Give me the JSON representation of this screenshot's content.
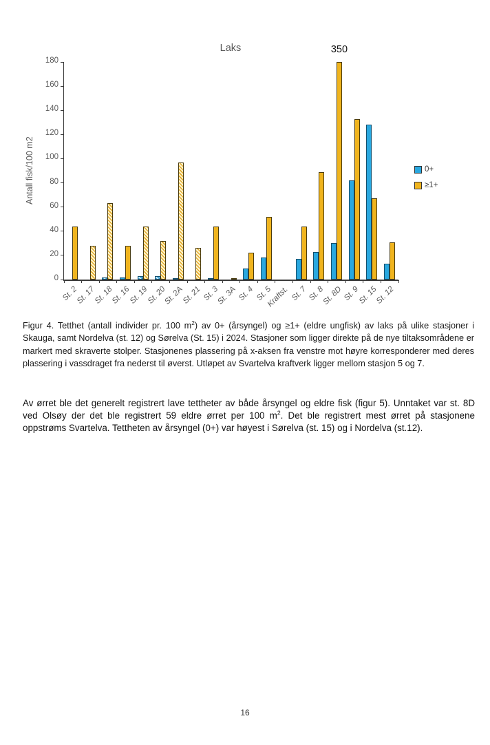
{
  "page": {
    "number": "16"
  },
  "chart_data": {
    "type": "bar",
    "title": "Laks",
    "ylabel": "Antall fisk/100 m2",
    "ylim": [
      0,
      180
    ],
    "ytick_step": 20,
    "grid": false,
    "legend_position": "right",
    "axis_text_color": "#595959",
    "categories": [
      "St. 2",
      "St. 17",
      "St. 18",
      "St. 16",
      "St. 19",
      "St. 20",
      "St. 2A",
      "St. 21",
      "St. 3",
      "St. 3A",
      "St. 4",
      "St. 5",
      "Kraftst.",
      "St. 7",
      "St. 8",
      "St. 8D",
      "St. 9",
      "St. 15",
      "St. 12"
    ],
    "hatched": [
      false,
      true,
      true,
      false,
      true,
      true,
      true,
      true,
      false,
      false,
      false,
      false,
      false,
      false,
      false,
      false,
      false,
      false,
      false
    ],
    "hatched_categories": [
      "St. 17",
      "St. 18",
      "St. 19",
      "St. 20",
      "St. 2A",
      "St. 21"
    ],
    "series": [
      {
        "name": "0+",
        "color": "#29A8E0",
        "values": [
          0,
          0,
          2,
          2,
          3,
          3,
          1,
          0,
          1,
          0,
          9,
          18,
          0,
          17,
          23,
          30,
          82,
          128,
          13
        ]
      },
      {
        "name": "≥1+",
        "color": "#F0B41E",
        "values": [
          44,
          28,
          63,
          28,
          44,
          32,
          97,
          26,
          44,
          1,
          22,
          52,
          0,
          44,
          89,
          350,
          133,
          67,
          31
        ]
      }
    ],
    "clip_label": {
      "category": "St. 8D",
      "series": "≥1+",
      "text": "350"
    }
  },
  "caption": {
    "segments": [
      {
        "text": "Figur 4. Tetthet (antall individer pr. 100 m"
      },
      {
        "text": "2",
        "sup": true
      },
      {
        "text": ") av 0+ (årsyngel) og ≥1+ (eldre ungfisk) av laks på ulike stasjoner i Skauga, samt Nordelva (st. 12) og Sørelva (St. 15) i 2024. Stasjoner som ligger direkte på de nye tiltaksområdene er markert med skraverte stolper. Stasjonenes plassering på x-aksen fra venstre mot høyre korresponderer med deres plassering i vassdraget fra nederst til øverst. Utløpet av Svartelva kraftverk ligger mellom stasjon 5 og 7."
      }
    ]
  },
  "body": {
    "segments": [
      {
        "text": "Av ørret ble det generelt registrert lave tettheter av både årsyngel og eldre fisk (figur 5). Unntaket var st. 8D ved Olsøy der det ble registrert 59 eldre ørret per 100 m"
      },
      {
        "text": "2",
        "sup": true
      },
      {
        "text": ". Det ble registrert mest ørret på stasjonene oppstrøms Svartelva. Tettheten av årsyngel (0+) var høyest i Sørelva (st. 15) og i Nordelva (st.12)."
      }
    ]
  }
}
